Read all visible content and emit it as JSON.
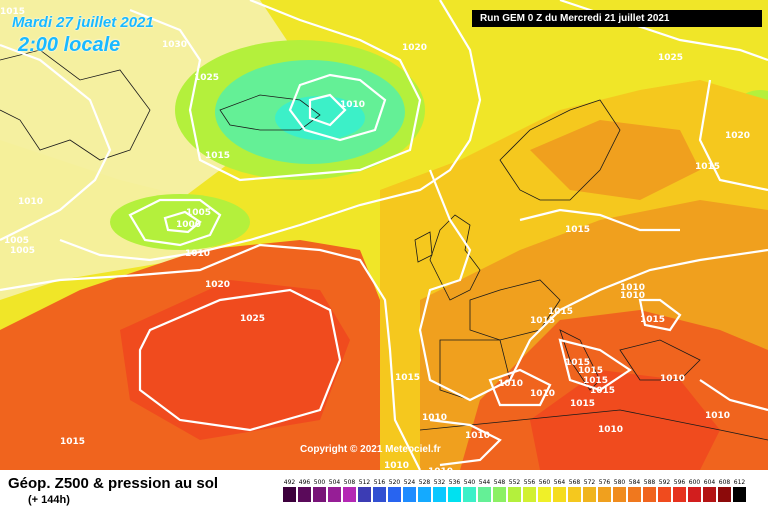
{
  "header": {
    "date_line": "Mardi 27 juillet 2021",
    "time_line": "2:00 locale",
    "run_info": "Run GEM 0 Z du Mercredi 21 juillet 2021"
  },
  "copyright": "Copyright © 2021 Meteociel.fr",
  "legend": {
    "title": "Géop. Z500 & pression au sol",
    "subtitle": "(+ 144h)",
    "scale_labels": [
      "492",
      "496",
      "500",
      "504",
      "508",
      "512",
      "516",
      "520",
      "524",
      "528",
      "532",
      "536",
      "540",
      "544",
      "548",
      "552",
      "556",
      "560",
      "564",
      "568",
      "572",
      "576",
      "580",
      "584",
      "588",
      "592",
      "596",
      "600",
      "604",
      "608",
      "612"
    ],
    "scale_colors": [
      "#3c003c",
      "#5a0a5a",
      "#781478",
      "#961e96",
      "#b428b4",
      "#3c3cb4",
      "#3250d2",
      "#2864f0",
      "#1e8cff",
      "#14aaff",
      "#0ac8ff",
      "#00e1f0",
      "#3cf0c8",
      "#64f096",
      "#8cf064",
      "#b4f03c",
      "#d2f032",
      "#f0f028",
      "#f5dc1e",
      "#f5c81e",
      "#f0b41e",
      "#f0a01e",
      "#f08c1e",
      "#f0781e",
      "#f0641e",
      "#f04b1e",
      "#e6321e",
      "#d21e1e",
      "#b41414",
      "#8c0a0a",
      "#000000"
    ]
  },
  "isobar_labels": [
    {
      "text": "1015"
    },
    {
      "text": "1030"
    },
    {
      "text": "1020"
    },
    {
      "text": "1025"
    },
    {
      "text": "1025"
    },
    {
      "text": "1010"
    },
    {
      "text": "1015"
    },
    {
      "text": "1010"
    },
    {
      "text": "1005"
    },
    {
      "text": "1000"
    },
    {
      "text": "1010"
    },
    {
      "text": "1005"
    },
    {
      "text": "1005"
    },
    {
      "text": "1020"
    },
    {
      "text": "1025"
    },
    {
      "text": "1015"
    },
    {
      "text": "1020"
    },
    {
      "text": "1015"
    },
    {
      "text": "1010"
    },
    {
      "text": "1010"
    },
    {
      "text": "1015"
    },
    {
      "text": "1015"
    },
    {
      "text": "1015"
    },
    {
      "text": "1015"
    },
    {
      "text": "1015"
    },
    {
      "text": "1015"
    },
    {
      "text": "1010"
    },
    {
      "text": "1010"
    },
    {
      "text": "1015"
    },
    {
      "text": "1015"
    },
    {
      "text": "1010"
    },
    {
      "text": "1010"
    },
    {
      "text": "1010"
    },
    {
      "text": "1010"
    },
    {
      "text": "1015"
    },
    {
      "text": "1010"
    },
    {
      "text": "1010"
    },
    {
      "text": "1005"
    },
    {
      "text": "1010"
    },
    {
      "text": "1015"
    }
  ]
}
